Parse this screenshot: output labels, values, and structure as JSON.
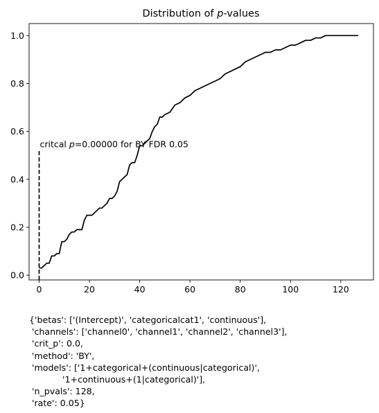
{
  "chart_data": {
    "type": "line",
    "title_prefix": "Distribution of ",
    "title_var": "p",
    "title_suffix": "-values",
    "xlabel": "",
    "ylabel": "",
    "xlim": [
      -4,
      133
    ],
    "ylim": [
      -0.02,
      1.05
    ],
    "xticks": [
      0,
      20,
      40,
      60,
      80,
      100,
      120
    ],
    "yticks": [
      0.0,
      0.2,
      0.4,
      0.6,
      0.8,
      1.0
    ],
    "grid": false,
    "line_color": "#000000",
    "series": [
      {
        "x": [
          0,
          1,
          2,
          3,
          4,
          5,
          6,
          7,
          8,
          9,
          10,
          11,
          12,
          13,
          14,
          15,
          16,
          17,
          18,
          19,
          20,
          21,
          22,
          23,
          24,
          25,
          26,
          27,
          28,
          29,
          30,
          31,
          32,
          33,
          34,
          35,
          36,
          37,
          38,
          39,
          40,
          41,
          42,
          43,
          44,
          45,
          46,
          47,
          48,
          49,
          50,
          52,
          54,
          56,
          58,
          60,
          62,
          64,
          66,
          68,
          70,
          72,
          74,
          76,
          78,
          80,
          82,
          84,
          86,
          88,
          90,
          92,
          94,
          96,
          98,
          100,
          102,
          104,
          106,
          108,
          110,
          112,
          114,
          116,
          118,
          120,
          122,
          124,
          127
        ],
        "y": [
          0.03,
          0.03,
          0.04,
          0.05,
          0.05,
          0.08,
          0.08,
          0.09,
          0.09,
          0.14,
          0.14,
          0.15,
          0.17,
          0.18,
          0.18,
          0.19,
          0.19,
          0.19,
          0.23,
          0.25,
          0.25,
          0.25,
          0.26,
          0.27,
          0.28,
          0.28,
          0.29,
          0.3,
          0.32,
          0.32,
          0.33,
          0.35,
          0.39,
          0.4,
          0.41,
          0.42,
          0.46,
          0.47,
          0.47,
          0.5,
          0.54,
          0.54,
          0.55,
          0.56,
          0.57,
          0.6,
          0.62,
          0.63,
          0.66,
          0.66,
          0.67,
          0.68,
          0.71,
          0.72,
          0.74,
          0.75,
          0.77,
          0.78,
          0.79,
          0.8,
          0.81,
          0.82,
          0.84,
          0.85,
          0.86,
          0.87,
          0.89,
          0.9,
          0.91,
          0.92,
          0.93,
          0.93,
          0.94,
          0.94,
          0.95,
          0.96,
          0.96,
          0.97,
          0.98,
          0.98,
          0.99,
          0.99,
          1.0,
          1.0,
          1.0,
          1.0,
          1.0,
          1.0,
          1.0
        ]
      }
    ],
    "vline": {
      "x": 0,
      "y_top": 0.52
    },
    "annotation": {
      "prefix": "critcal ",
      "var": "p",
      "suffix": "=0.00000 for BY FDR 0.05",
      "x": 0,
      "y": 0.52
    }
  },
  "info_lines": [
    "{'betas': ['(Intercept)', 'categoricalcat1', 'continuous'],",
    " 'channels': ['channel0', 'channel1', 'channel2', 'channel3'],",
    " 'crit_p': 0.0,",
    " 'method': 'BY',",
    " 'models': ['1+categorical+(continuous|categorical)',",
    "            '1+continuous+(1|categorical)'],",
    " 'n_pvals': 128,",
    " 'rate': 0.05}"
  ]
}
